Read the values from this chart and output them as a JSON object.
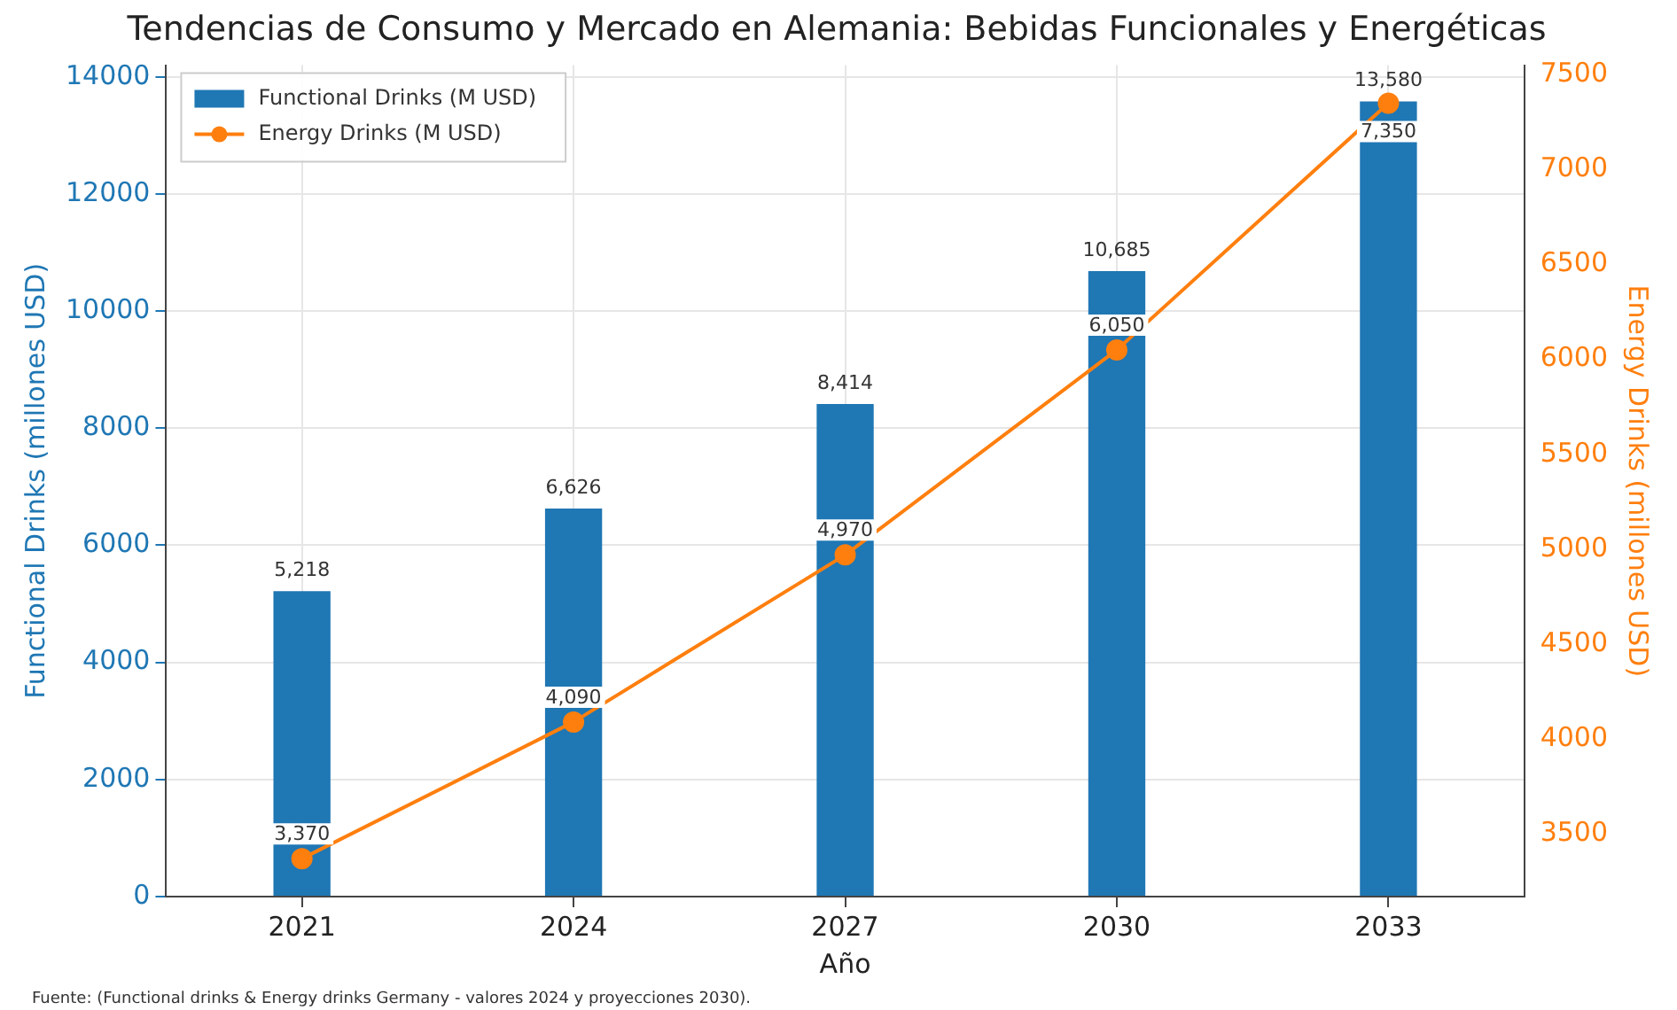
{
  "chart_data": {
    "type": "bar",
    "title": "Tendencias de Consumo y Mercado en Alemania: Bebidas Funcionales y Energéticas",
    "xlabel": "Año",
    "ylabel": "Functional Drinks (millones USD)",
    "y2label": "Energy Drinks (millones USD)",
    "categories": [
      "2021",
      "2024",
      "2027",
      "2030",
      "2033"
    ],
    "series": [
      {
        "name": "Functional Drinks (M USD)",
        "color": "#1f77b4",
        "values": [
          5218,
          6626,
          8414,
          10685,
          13580
        ],
        "value_labels": [
          "5,218",
          "6,626",
          "8,414",
          "10,685",
          "13,580"
        ]
      },
      {
        "name": "Energy Drinks (M USD)",
        "type": "line",
        "axis": "y2",
        "color": "#ff7f0e",
        "marker": "circle",
        "values": [
          3370,
          4090,
          4970,
          6050,
          7350
        ],
        "value_labels": [
          "3,370",
          "4,090",
          "4,970",
          "6,050",
          "7,350"
        ]
      }
    ],
    "ylim": [
      0,
      14200
    ],
    "yticks": [
      0,
      2000,
      4000,
      6000,
      8000,
      10000,
      12000,
      14000
    ],
    "y2lim": [
      3170,
      7550
    ],
    "y2ticks": [
      3500,
      4000,
      4500,
      5000,
      5500,
      6000,
      6500,
      7000,
      7500
    ],
    "grid": true,
    "legend": "top left",
    "annotations": [
      "Fuente: (Functional drinks & Energy drinks Germany - valores 2024 y proyecciones 2030)."
    ]
  }
}
